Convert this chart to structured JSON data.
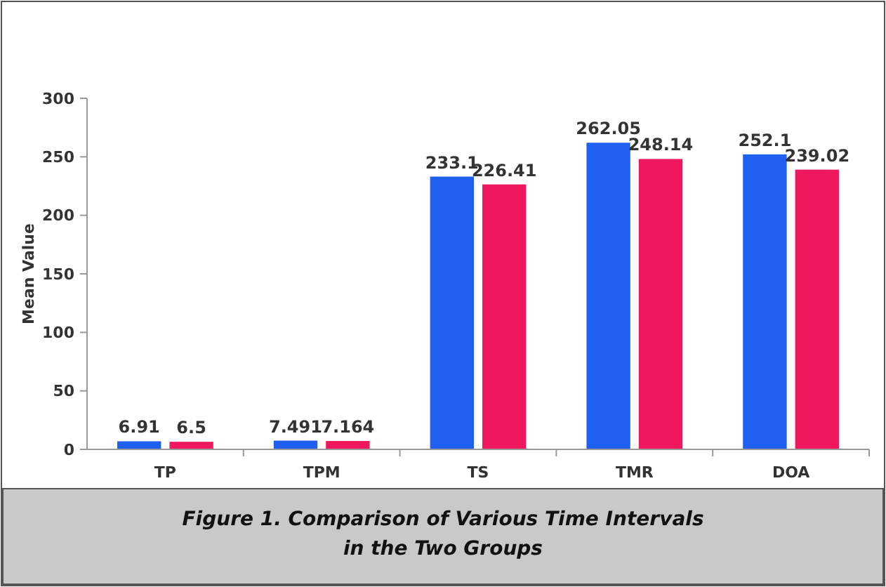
{
  "chart_data": {
    "type": "bar",
    "ylabel": "Mean Value",
    "categories": [
      "TP",
      "TPM",
      "TS",
      "TMR",
      "DOA"
    ],
    "series": [
      {
        "color": "#2060f0",
        "values": [
          6.91,
          7.491,
          233.1,
          262.05,
          252.1
        ]
      },
      {
        "color": "#f0185c",
        "values": [
          6.5,
          7.164,
          226.41,
          248.14,
          239.02
        ]
      }
    ],
    "ylim": [
      0,
      300
    ],
    "yticks": [
      0,
      50,
      100,
      150,
      200,
      250,
      300
    ],
    "grid": false,
    "data_labels": true,
    "annotations": [
      "Figure 1. Comparison of Various Time Intervals in the Two Groups"
    ]
  }
}
